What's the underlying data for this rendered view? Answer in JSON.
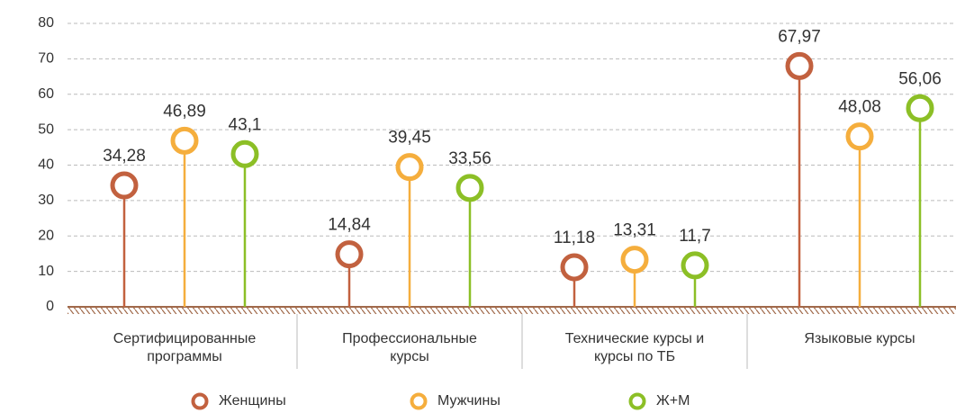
{
  "chart_data": {
    "type": "lollipop",
    "categories": [
      [
        "Сертифицированные",
        "программы"
      ],
      [
        "Профессиональные",
        "курсы"
      ],
      [
        "Технические курсы и",
        "курсы по ТБ"
      ],
      [
        "Языковые курсы"
      ]
    ],
    "series": [
      {
        "name": "Женщины",
        "color": "#c2613f",
        "values": [
          34.28,
          14.84,
          11.18,
          67.97
        ],
        "value_labels": [
          "34,28",
          "14,84",
          "11,18",
          "67,97"
        ]
      },
      {
        "name": "Мужчины",
        "color": "#f5ae3d",
        "values": [
          46.89,
          39.45,
          13.31,
          48.08
        ],
        "value_labels": [
          "46,89",
          "39,45",
          "13,31",
          "48,08"
        ]
      },
      {
        "name": "Ж+М",
        "color": "#8cbf26",
        "values": [
          43.1,
          33.56,
          11.7,
          56.06
        ],
        "value_labels": [
          "43,1",
          "33,56",
          "11,7",
          "56,06"
        ]
      }
    ],
    "ylim": [
      0,
      80
    ],
    "yticks": [
      0,
      10,
      20,
      30,
      40,
      50,
      60,
      70,
      80
    ],
    "grid": true,
    "legend": "bottom"
  }
}
